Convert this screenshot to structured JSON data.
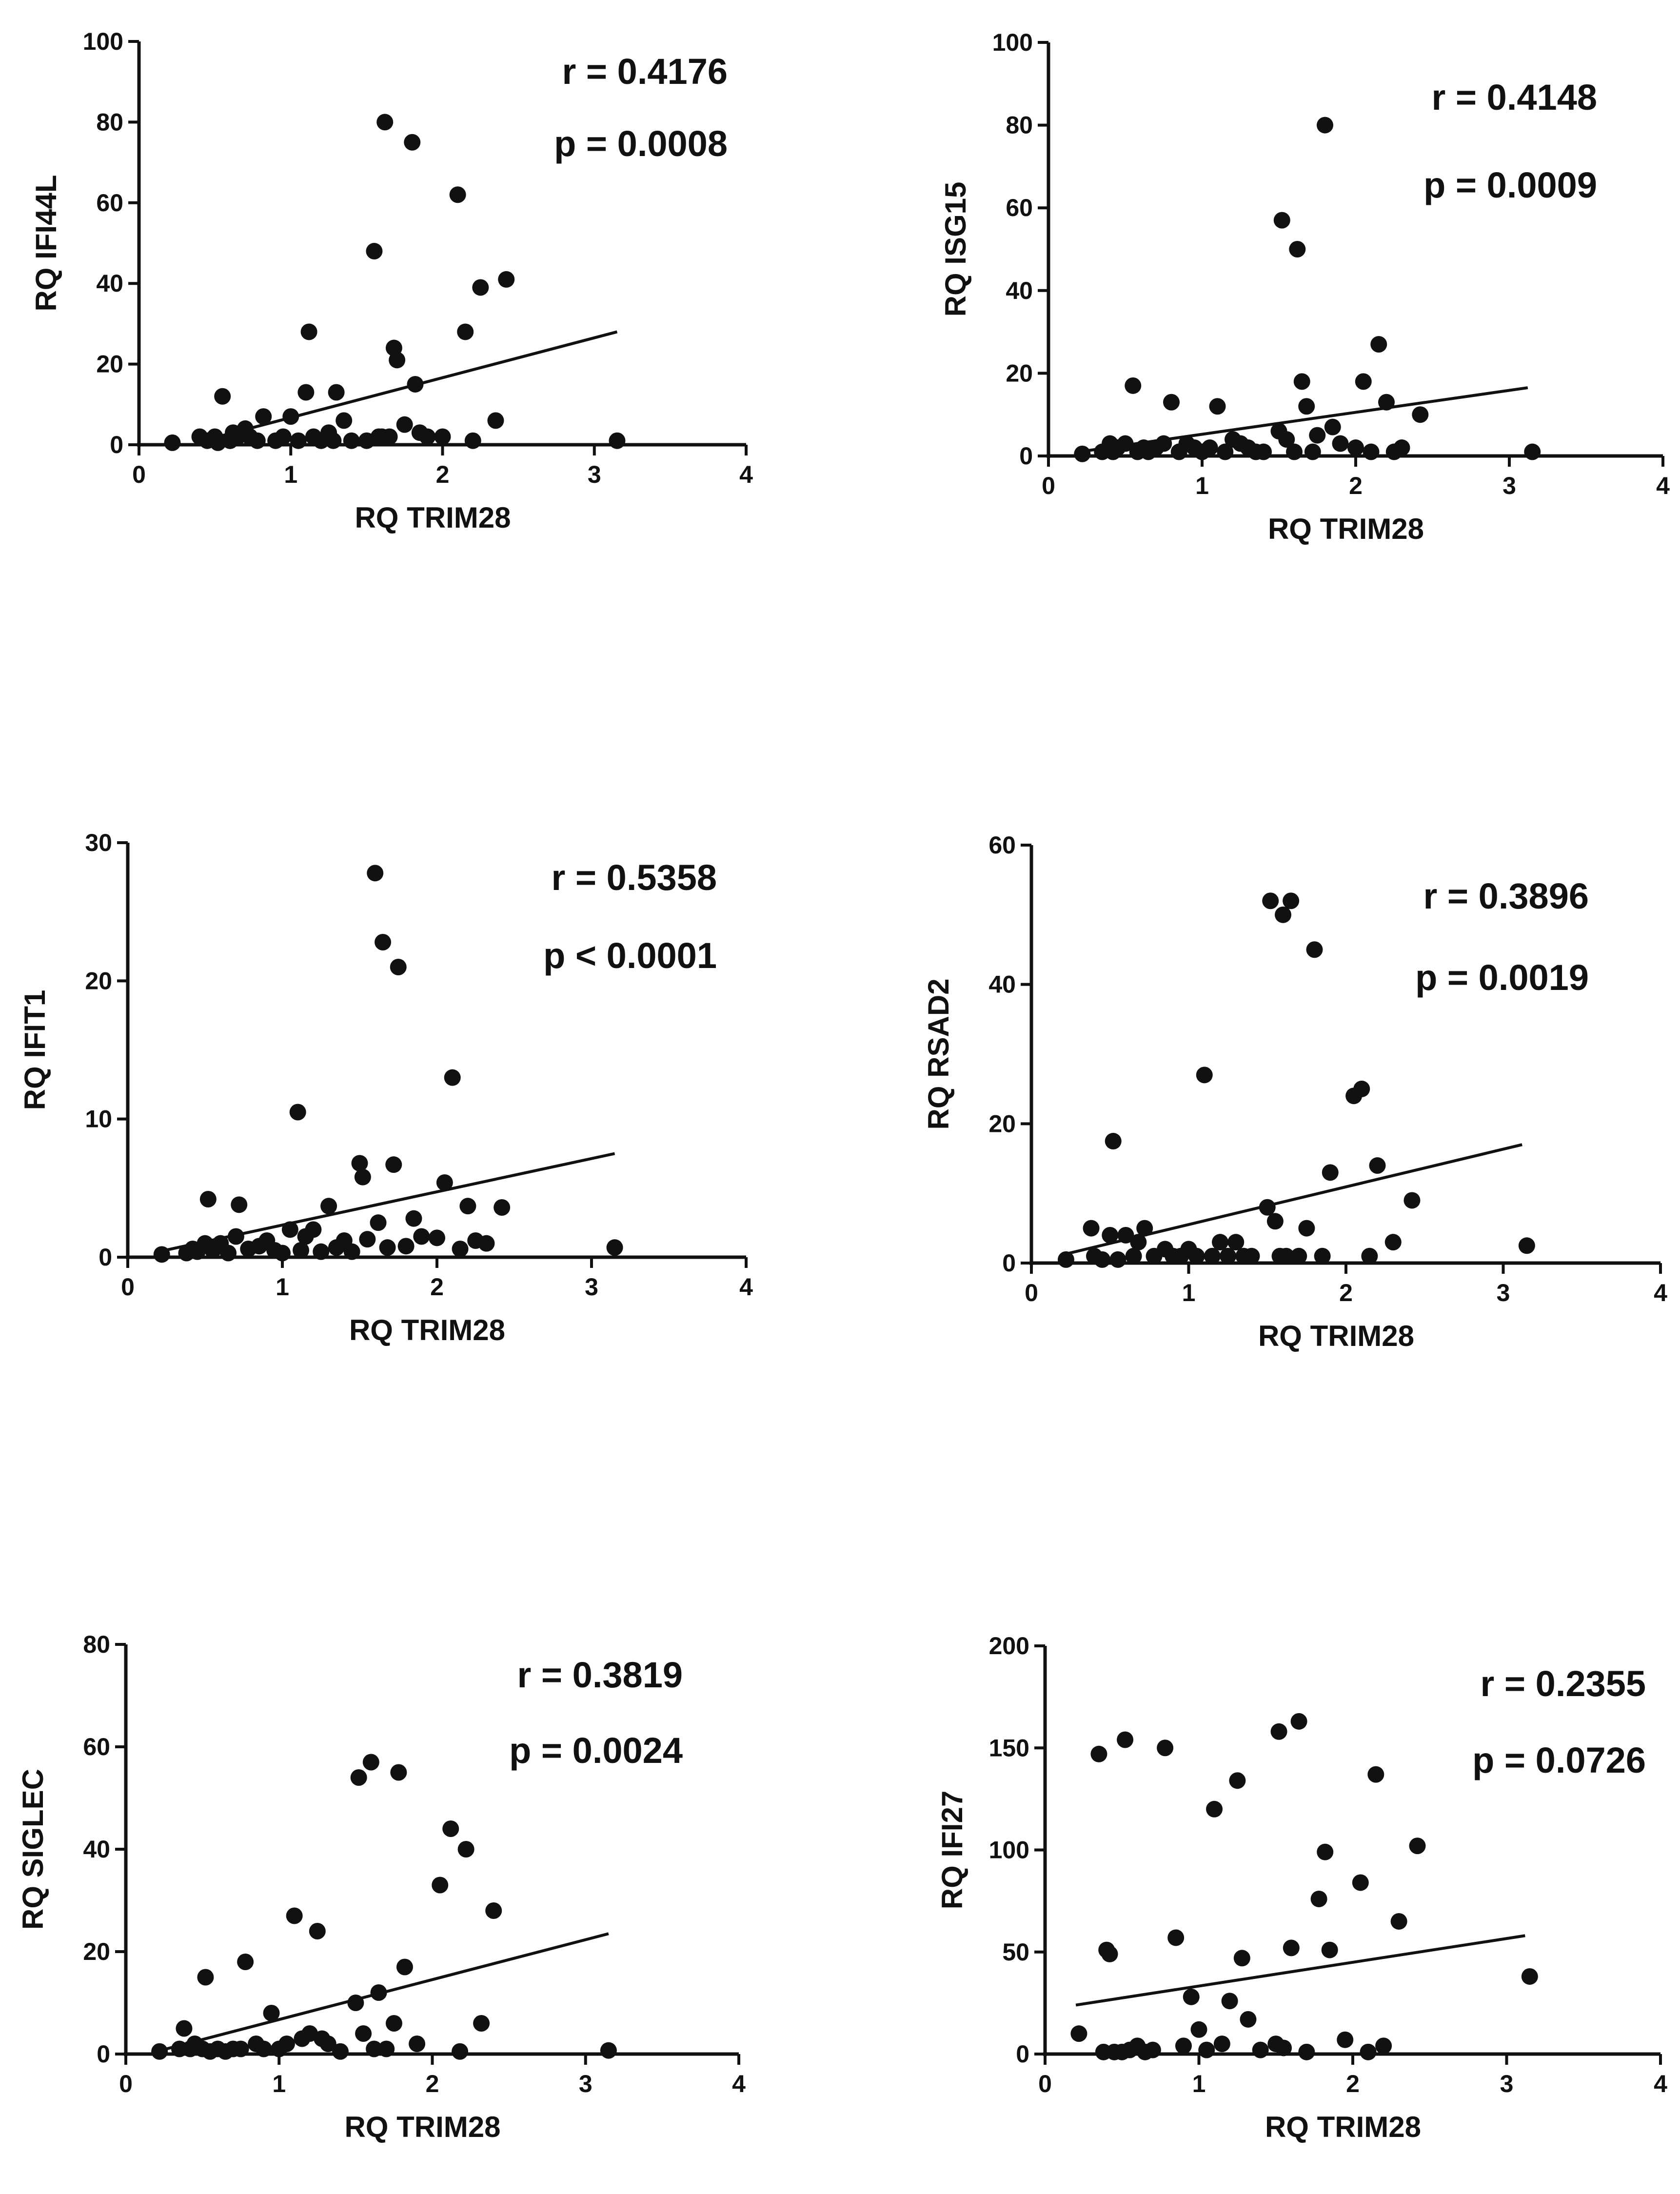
{
  "chart_data": [
    {
      "type": "scatter",
      "xlabel": "RQ TRIM28",
      "ylabel": "RQ IFI44L",
      "xlim": [
        0,
        4
      ],
      "ylim": [
        0,
        100
      ],
      "xticks": [
        0,
        1,
        2,
        3,
        4
      ],
      "yticks": [
        0,
        20,
        40,
        60,
        80,
        100
      ],
      "r_text": "r = 0.4176",
      "p_text": "p = 0.0008",
      "fit": {
        "x": [
          0.4,
          3.15
        ],
        "y": [
          0.8,
          28
        ]
      },
      "x": [
        0.22,
        0.4,
        0.45,
        0.5,
        0.52,
        0.55,
        0.6,
        0.62,
        0.65,
        0.7,
        0.73,
        0.78,
        0.82,
        0.9,
        0.95,
        1.0,
        1.05,
        1.1,
        1.12,
        1.15,
        1.2,
        1.25,
        1.3,
        1.35,
        1.4,
        1.5,
        1.55,
        1.6,
        1.62,
        1.65,
        1.68,
        1.7,
        1.75,
        1.8,
        1.82,
        1.85,
        1.9,
        2.0,
        2.1,
        2.15,
        2.2,
        2.25,
        2.35,
        2.42,
        3.15,
        0.6,
        1.28,
        1.58
      ],
      "y": [
        0.5,
        2,
        1,
        2,
        0.5,
        12,
        1,
        3,
        2,
        4,
        2,
        1,
        7,
        1,
        2,
        7,
        1,
        13,
        28,
        2,
        1,
        3,
        13,
        6,
        1,
        1,
        48,
        2,
        80,
        2,
        24,
        21,
        5,
        75,
        15,
        3,
        2,
        2,
        62,
        28,
        1,
        39,
        6,
        41,
        1,
        1,
        1,
        2
      ]
    },
    {
      "type": "scatter",
      "xlabel": "RQ TRIM28",
      "ylabel": "RQ ISG15",
      "xlim": [
        0,
        4
      ],
      "ylim": [
        0,
        100
      ],
      "xticks": [
        0,
        1,
        2,
        3,
        4
      ],
      "yticks": [
        0,
        20,
        40,
        60,
        80,
        100
      ],
      "r_text": "r = 0.4148",
      "p_text": "p = 0.0009",
      "fit": {
        "x": [
          0.2,
          3.12
        ],
        "y": [
          1,
          16.5
        ]
      },
      "x": [
        0.22,
        0.35,
        0.4,
        0.42,
        0.45,
        0.5,
        0.55,
        0.58,
        0.62,
        0.65,
        0.7,
        0.75,
        0.8,
        0.85,
        0.9,
        0.95,
        1.0,
        1.05,
        1.1,
        1.15,
        1.2,
        1.25,
        1.3,
        1.35,
        1.4,
        1.5,
        1.52,
        1.55,
        1.6,
        1.62,
        1.65,
        1.68,
        1.72,
        1.75,
        1.8,
        1.85,
        1.9,
        2.0,
        2.05,
        2.1,
        2.15,
        2.2,
        2.25,
        2.3,
        2.42,
        3.15
      ],
      "y": [
        0.5,
        1,
        3,
        1,
        2,
        3,
        17,
        1,
        2,
        1,
        2,
        3,
        13,
        1,
        3,
        2,
        1,
        2,
        12,
        1,
        4,
        3,
        2,
        1,
        1,
        6,
        57,
        4,
        1,
        50,
        18,
        12,
        1,
        5,
        80,
        7,
        3,
        2,
        18,
        1,
        27,
        13,
        1,
        2,
        10,
        1
      ]
    },
    {
      "type": "scatter",
      "xlabel": "RQ TRIM28",
      "ylabel": "RQ IFIT1",
      "xlim": [
        0,
        4
      ],
      "ylim": [
        0,
        30
      ],
      "xticks": [
        0,
        1,
        2,
        3,
        4
      ],
      "yticks": [
        0,
        10,
        20,
        30
      ],
      "r_text": "r = 0.5358",
      "p_text": "p < 0.0001",
      "fit": {
        "x": [
          0.2,
          3.15
        ],
        "y": [
          0.4,
          7.5
        ]
      },
      "x": [
        0.22,
        0.38,
        0.42,
        0.45,
        0.5,
        0.52,
        0.55,
        0.6,
        0.65,
        0.7,
        0.72,
        0.78,
        0.85,
        0.9,
        0.95,
        1.0,
        1.05,
        1.1,
        1.12,
        1.15,
        1.2,
        1.25,
        1.3,
        1.35,
        1.4,
        1.45,
        1.5,
        1.52,
        1.55,
        1.6,
        1.62,
        1.65,
        1.68,
        1.72,
        1.75,
        1.8,
        1.85,
        1.9,
        2.0,
        2.05,
        2.1,
        2.15,
        2.2,
        2.25,
        2.32,
        2.42,
        3.15
      ],
      "y": [
        0.2,
        0.3,
        0.6,
        0.4,
        1,
        4.2,
        0.5,
        1,
        0.3,
        1.5,
        3.8,
        0.6,
        0.8,
        1.2,
        0.5,
        0.3,
        2,
        10.5,
        0.5,
        1.5,
        2,
        0.4,
        3.7,
        0.7,
        1.2,
        0.4,
        6.8,
        5.8,
        1.3,
        27.8,
        2.5,
        22.8,
        0.7,
        6.7,
        21,
        0.8,
        2.8,
        1.5,
        1.4,
        5.4,
        13,
        0.6,
        3.7,
        1.2,
        1,
        3.6,
        0.7
      ]
    },
    {
      "type": "scatter",
      "xlabel": "RQ TRIM28",
      "ylabel": "RQ RSAD2",
      "xlim": [
        0,
        4
      ],
      "ylim": [
        0,
        60
      ],
      "xticks": [
        0,
        1,
        2,
        3,
        4
      ],
      "yticks": [
        0,
        20,
        40,
        60
      ],
      "r_text": "r = 0.3896",
      "p_text": "p = 0.0019",
      "fit": {
        "x": [
          0.2,
          3.12
        ],
        "y": [
          1.2,
          17
        ]
      },
      "x": [
        0.22,
        0.38,
        0.4,
        0.45,
        0.5,
        0.52,
        0.55,
        0.6,
        0.65,
        0.68,
        0.72,
        0.78,
        0.85,
        0.9,
        0.95,
        1.0,
        1.05,
        1.1,
        1.15,
        1.2,
        1.25,
        1.3,
        1.35,
        1.4,
        1.5,
        1.52,
        1.55,
        1.58,
        1.6,
        1.62,
        1.65,
        1.7,
        1.75,
        1.8,
        1.85,
        1.9,
        2.05,
        2.1,
        2.15,
        2.2,
        2.3,
        2.42,
        3.15
      ],
      "y": [
        0.5,
        5,
        1,
        0.5,
        4,
        17.5,
        0.5,
        4,
        1,
        3,
        5,
        1,
        2,
        1,
        1,
        2,
        1,
        27,
        1,
        3,
        1,
        3,
        1,
        1,
        8,
        52,
        6,
        1,
        50,
        1,
        52,
        1,
        5,
        45,
        1,
        13,
        24,
        25,
        1,
        14,
        3,
        9,
        2.5
      ]
    },
    {
      "type": "scatter",
      "xlabel": "RQ TRIM28",
      "ylabel": "RQ SIGLEC",
      "xlim": [
        0,
        4
      ],
      "ylim": [
        0,
        80
      ],
      "xticks": [
        0,
        1,
        2,
        3,
        4
      ],
      "yticks": [
        0,
        20,
        40,
        60,
        80
      ],
      "r_text": "r = 0.3819",
      "p_text": "p = 0.0024",
      "fit": {
        "x": [
          0.2,
          3.15
        ],
        "y": [
          0.5,
          23.5
        ]
      },
      "x": [
        0.22,
        0.35,
        0.38,
        0.42,
        0.45,
        0.5,
        0.52,
        0.55,
        0.6,
        0.65,
        0.7,
        0.75,
        0.78,
        0.85,
        0.9,
        0.95,
        1.0,
        1.05,
        1.1,
        1.15,
        1.2,
        1.25,
        1.28,
        1.32,
        1.4,
        1.5,
        1.52,
        1.55,
        1.6,
        1.62,
        1.65,
        1.7,
        1.75,
        1.78,
        1.82,
        1.9,
        2.05,
        2.12,
        2.18,
        2.22,
        2.32,
        2.4,
        3.15
      ],
      "y": [
        0.5,
        1,
        5,
        1,
        2,
        1,
        15,
        0.5,
        1,
        0.5,
        1,
        1,
        18,
        2,
        1,
        8,
        1,
        2,
        27,
        3,
        4,
        24,
        3,
        2,
        0.5,
        10,
        54,
        4,
        57,
        1,
        12,
        1,
        6,
        55,
        17,
        2,
        33,
        44,
        0.5,
        40,
        6,
        28,
        0.7
      ]
    },
    {
      "type": "scatter",
      "xlabel": "RQ TRIM28",
      "ylabel": "RQ IFI27",
      "xlim": [
        0,
        4
      ],
      "ylim": [
        0,
        200
      ],
      "xticks": [
        0,
        1,
        2,
        3,
        4
      ],
      "yticks": [
        0,
        50,
        100,
        150,
        200
      ],
      "r_text": "r = 0.2355",
      "p_text": "p = 0.0726",
      "fit": {
        "x": [
          0.2,
          3.12
        ],
        "y": [
          24,
          58
        ]
      },
      "x": [
        0.22,
        0.35,
        0.38,
        0.4,
        0.42,
        0.45,
        0.5,
        0.52,
        0.55,
        0.6,
        0.65,
        0.7,
        0.78,
        0.85,
        0.9,
        0.95,
        1.0,
        1.05,
        1.1,
        1.15,
        1.2,
        1.25,
        1.28,
        1.32,
        1.4,
        1.5,
        1.52,
        1.55,
        1.6,
        1.65,
        1.7,
        1.78,
        1.82,
        1.85,
        1.95,
        2.05,
        2.1,
        2.15,
        2.2,
        2.3,
        2.42,
        3.15
      ],
      "y": [
        10,
        147,
        1,
        51,
        49,
        1,
        1,
        154,
        2,
        4,
        1,
        2,
        150,
        57,
        4,
        28,
        12,
        2,
        120,
        5,
        26,
        134,
        47,
        17,
        2,
        5,
        158,
        3,
        52,
        163,
        1,
        76,
        99,
        51,
        7,
        84,
        1,
        137,
        4,
        65,
        102,
        38
      ]
    }
  ]
}
